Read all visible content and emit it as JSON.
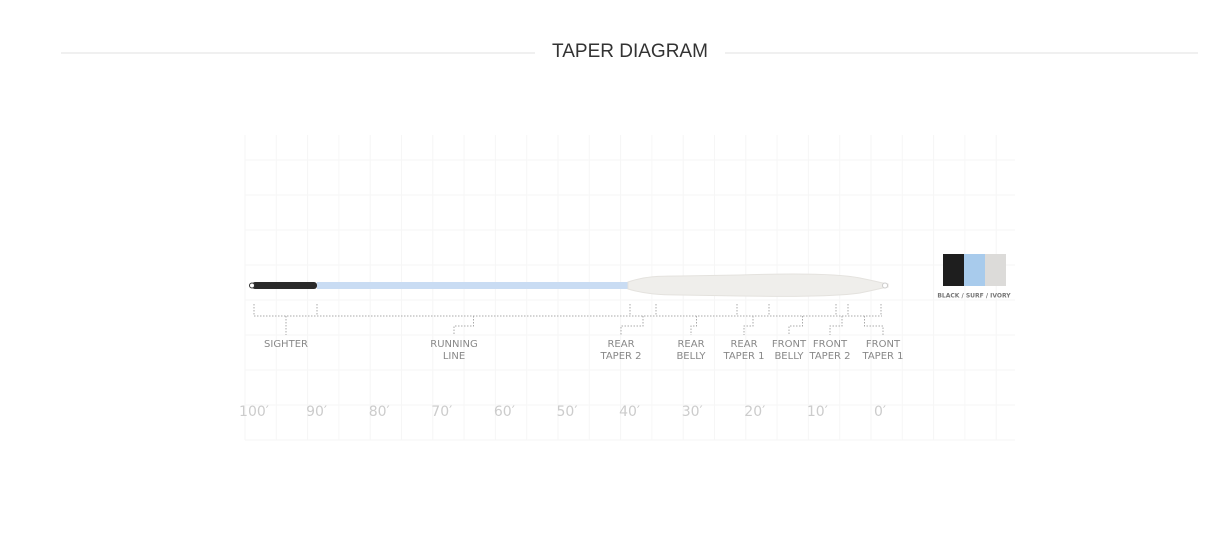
{
  "title": "TAPER DIAGRAM",
  "segments": [
    {
      "lines": [
        "SIGHTER"
      ]
    },
    {
      "lines": [
        "RUNNING",
        "LINE"
      ]
    },
    {
      "lines": [
        "REAR",
        "TAPER 2"
      ]
    },
    {
      "lines": [
        "REAR",
        "BELLY"
      ]
    },
    {
      "lines": [
        "REAR",
        "TAPER 1"
      ]
    },
    {
      "lines": [
        "FRONT",
        "BELLY"
      ]
    },
    {
      "lines": [
        "FRONT",
        "TAPER 2"
      ]
    },
    {
      "lines": [
        "FRONT",
        "TAPER 1"
      ]
    }
  ],
  "axis_labels": [
    "100′",
    "90′",
    "80′",
    "70′",
    "60′",
    "50′",
    "40′",
    "30′",
    "20′",
    "10′",
    "0′"
  ],
  "color_label": "BLACK / SURF / IVORY"
}
